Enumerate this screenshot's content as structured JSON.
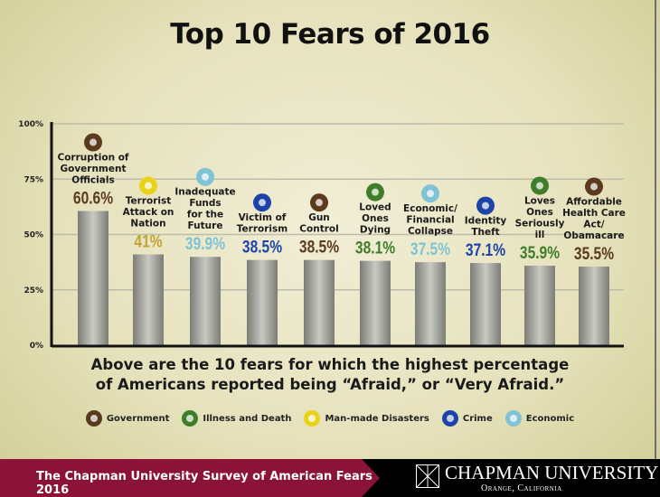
{
  "chart_data": {
    "type": "bar",
    "title": "Top 10 Fears of 2016",
    "ylim": [
      0,
      100
    ],
    "yticks": [
      "0%",
      "25%",
      "50%",
      "75%",
      "100%"
    ],
    "grid": true,
    "categories": [
      {
        "label": [
          "Corruption of",
          "Government",
          "Officials"
        ],
        "value": 60.6,
        "display": "60.6%",
        "group": "Government"
      },
      {
        "label": [
          "Terrorist",
          "Attack on",
          "Nation"
        ],
        "value": 41,
        "display": "41%",
        "group": "Man-made Disasters"
      },
      {
        "label": [
          "Inadequate",
          "Funds",
          "for the",
          "Future"
        ],
        "value": 39.9,
        "display": "39.9%",
        "group": "Economic"
      },
      {
        "label": [
          "Victim of",
          "Terrorism"
        ],
        "value": 38.5,
        "display": "38.5%",
        "group": "Crime"
      },
      {
        "label": [
          "Gun",
          "Control"
        ],
        "value": 38.5,
        "display": "38.5%",
        "group": "Government"
      },
      {
        "label": [
          "Loved",
          "Ones",
          "Dying"
        ],
        "value": 38.1,
        "display": "38.1%",
        "group": "Illness and Death"
      },
      {
        "label": [
          "Economic/",
          "Financial",
          "Collapse"
        ],
        "value": 37.5,
        "display": "37.5%",
        "group": "Economic"
      },
      {
        "label": [
          "Identity",
          "Theft"
        ],
        "value": 37.1,
        "display": "37.1%",
        "group": "Crime"
      },
      {
        "label": [
          "Loves",
          "Ones",
          "Seriously",
          "ill"
        ],
        "value": 35.9,
        "display": "35.9%",
        "group": "Illness and Death"
      },
      {
        "label": [
          "Affordable",
          "Health Care",
          "Act/",
          "Obamacare"
        ],
        "value": 35.5,
        "display": "35.5%",
        "group": "Government"
      }
    ],
    "legend": [
      {
        "name": "Government",
        "color": "#5b3a1e",
        "icon": "column-icon"
      },
      {
        "name": "Illness and Death",
        "color": "#3f7d2a",
        "icon": "skull-crossbones-icon"
      },
      {
        "name": "Man-made Disasters",
        "color": "#e8d21a",
        "icon": "radiation-icon"
      },
      {
        "name": "Crime",
        "color": "#1d43a8",
        "icon": "handcuffs-icon"
      },
      {
        "name": "Economic",
        "color": "#7fc3d4",
        "icon": "globe-icon"
      }
    ],
    "value_colors": {
      "Government": "#5b3a1e",
      "Illness and Death": "#3f7d2a",
      "Man-made Disasters": "#c2a333",
      "Crime": "#1d43a8",
      "Economic": "#7fc3d4"
    }
  },
  "caption": [
    "Above are the 10 fears for which the highest percentage",
    "of Americans reported being “Afraid,” or “Very Afraid.”"
  ],
  "footer": {
    "survey": "The Chapman University Survey of American Fears 2016",
    "university": "CHAPMAN UNIVERSITY",
    "location": "Orange, California"
  }
}
